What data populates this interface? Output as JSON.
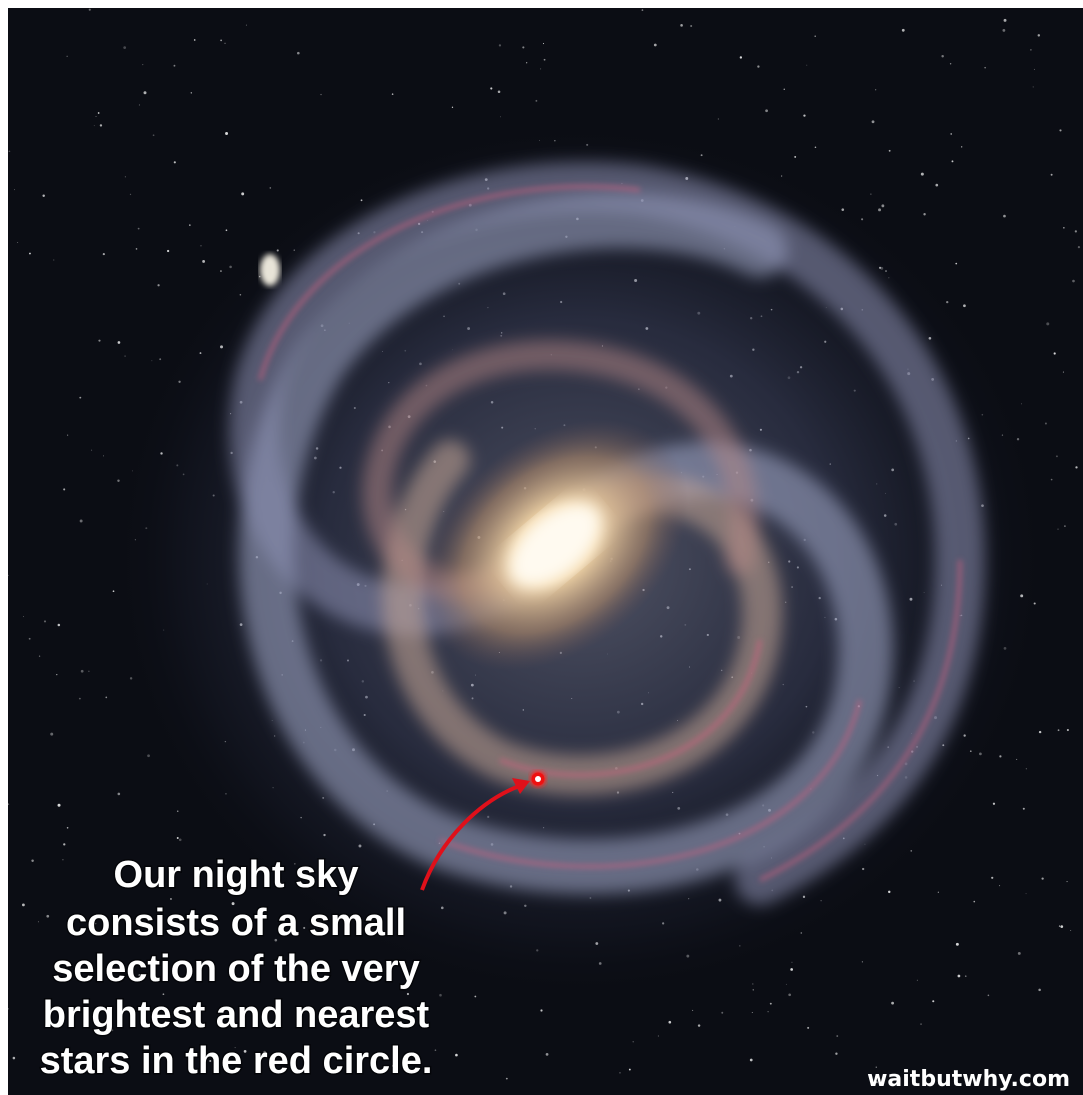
{
  "caption": {
    "lines": [
      "Our night sky",
      "consists of a small",
      "selection of the very",
      "brightest and nearest",
      "stars in the red circle."
    ]
  },
  "watermark": "waitbutwhy.com"
}
